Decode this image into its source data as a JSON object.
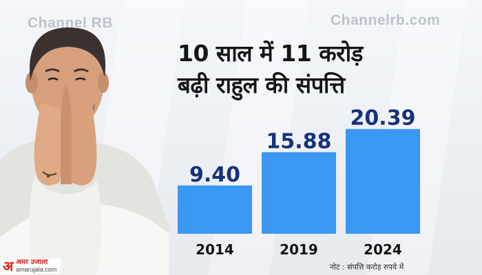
{
  "watermarks": {
    "left": "Channel RB",
    "right": "Channelrb.com"
  },
  "headline": {
    "line1": "10 साल में 11 करोड़",
    "line2": "बढ़ी राहुल की संपत्ति"
  },
  "colors": {
    "bar": "#3a97f2",
    "value_text": "#17327a",
    "axis_text": "#151515",
    "brand": "#d4201f"
  },
  "chart_data": {
    "type": "bar",
    "categories": [
      "2014",
      "2019",
      "2024"
    ],
    "values": [
      9.4,
      15.88,
      20.39
    ],
    "value_labels": [
      "9.40",
      "15.88",
      "20.39"
    ],
    "unit_note": "नोट : संपत्ति करोड़ रुपये में",
    "grid": false,
    "legend": "none"
  },
  "brand": {
    "mark": "अ",
    "name": "अमर उजाला",
    "url": "amarujala.com"
  },
  "note": "नोट : संपत्ति करोड़ रुपये में"
}
